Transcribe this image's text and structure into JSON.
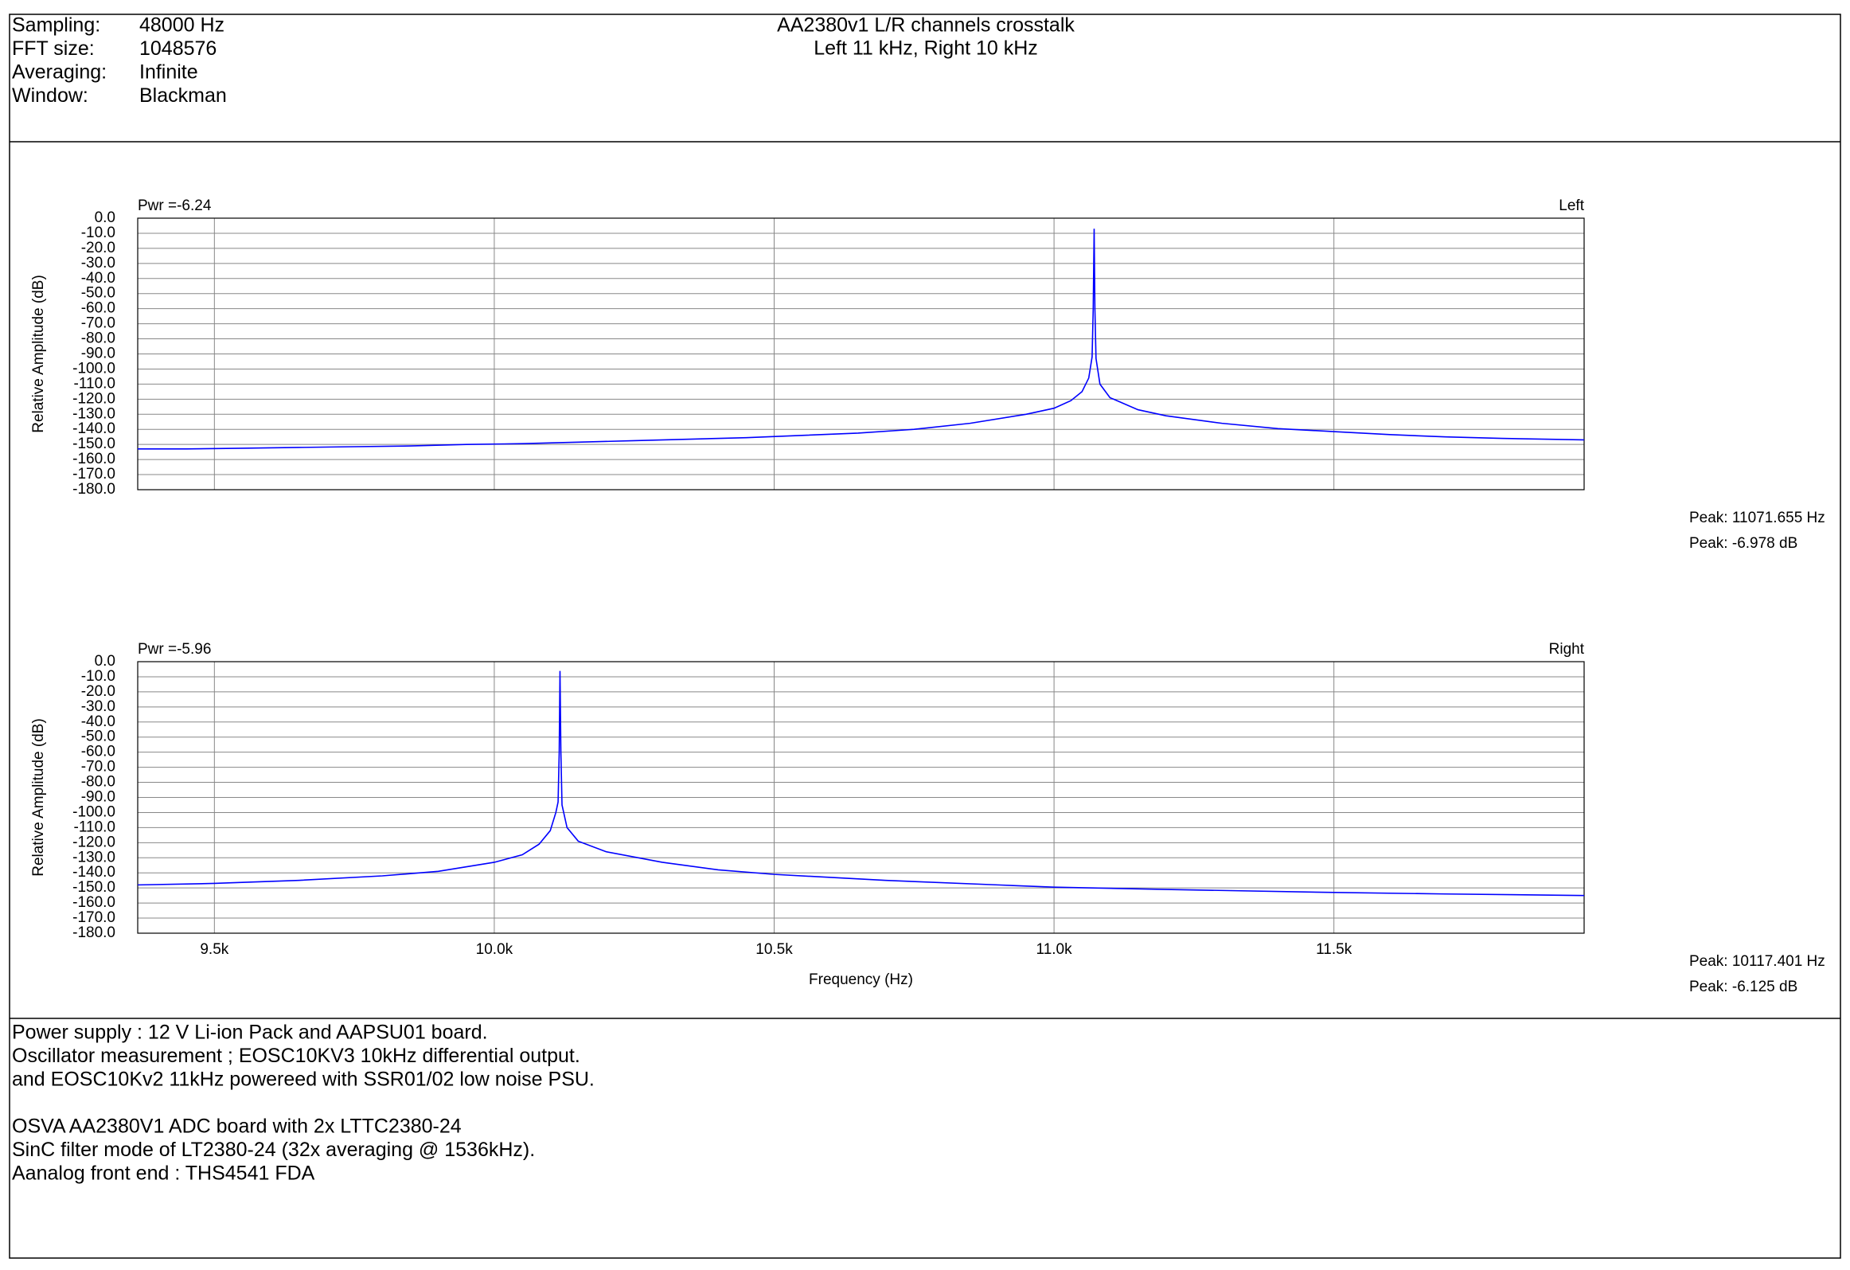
{
  "header": {
    "fields": [
      {
        "label": "Sampling:",
        "value": "48000 Hz"
      },
      {
        "label": "FFT size:",
        "value": "1048576"
      },
      {
        "label": "Averaging:",
        "value": "Infinite"
      },
      {
        "label": "Window:",
        "value": "Blackman"
      }
    ],
    "title": "AA2380v1 L/R channels crosstalk",
    "subtitle": "Left 11 kHz, Right 10 kHz"
  },
  "chart_data": [
    {
      "type": "line",
      "power_label": "Pwr =-6.24",
      "ylabel": "Relative Amplitude (dB)",
      "peak_labels": [
        "Peak: 11071.655 Hz",
        "Peak: -6.978 dB"
      ],
      "x": [
        9363,
        9450,
        9550,
        9650,
        9750,
        9850,
        9950,
        10050,
        10150,
        10250,
        10350,
        10450,
        10550,
        10650,
        10750,
        10850,
        10950,
        11000,
        11030,
        11050,
        11062,
        11068,
        11070,
        11071.655,
        11073,
        11075,
        11082,
        11100,
        11150,
        11200,
        11300,
        11400,
        11500,
        11600,
        11700,
        11800,
        11947
      ],
      "series": [
        {
          "name": "Left",
          "color": "#0000ff",
          "values": [
            -153,
            -153,
            -152.5,
            -152,
            -151.5,
            -151,
            -150,
            -149.5,
            -148.5,
            -147.5,
            -146.5,
            -145.5,
            -144,
            -142.5,
            -140,
            -136,
            -130,
            -126,
            -121,
            -115,
            -106,
            -92,
            -60,
            -6.978,
            -60,
            -93,
            -110,
            -119,
            -127,
            -131,
            -136,
            -139.5,
            -141.5,
            -143.5,
            -145,
            -146,
            -147
          ]
        }
      ],
      "xlim": [
        9363,
        11947
      ],
      "xticks": [
        9500,
        10000,
        10500,
        11000,
        11500
      ],
      "show_xtick_labels": false,
      "ylim": [
        -180,
        0
      ],
      "yticks": [
        {
          "value": 0,
          "label": "0.0"
        },
        {
          "value": -10,
          "label": "-10.0"
        },
        {
          "value": -20,
          "label": "-20.0"
        },
        {
          "value": -30,
          "label": "-30.0"
        },
        {
          "value": -40,
          "label": "-40.0"
        },
        {
          "value": -50,
          "label": "-50.0"
        },
        {
          "value": -60,
          "label": "-60.0"
        },
        {
          "value": -70,
          "label": "-70.0"
        },
        {
          "value": -80,
          "label": "-80.0"
        },
        {
          "value": -90,
          "label": "-90.0"
        },
        {
          "value": -100,
          "label": "-100.0"
        },
        {
          "value": -110,
          "label": "-110.0"
        },
        {
          "value": -120,
          "label": "-120.0"
        },
        {
          "value": -130,
          "label": "-130.0"
        },
        {
          "value": -140,
          "label": "-140.0"
        },
        {
          "value": -150,
          "label": "-150.0"
        },
        {
          "value": -160,
          "label": "-160.0"
        },
        {
          "value": -170,
          "label": "-170.0"
        },
        {
          "value": -180,
          "label": "-180.0"
        }
      ],
      "grid": true
    },
    {
      "type": "line",
      "power_label": "Pwr =-5.96",
      "ylabel": "Relative Amplitude (dB)",
      "xlabel": "Frequency (Hz)",
      "peak_labels": [
        "Peak: 10117.401 Hz",
        "Peak: -6.125 dB"
      ],
      "x": [
        9363,
        9500,
        9650,
        9800,
        9900,
        10000,
        10050,
        10080,
        10100,
        10110,
        10114,
        10116,
        10117.401,
        10119,
        10121,
        10130,
        10150,
        10200,
        10300,
        10400,
        10500,
        10700,
        10900,
        11000,
        11200,
        11500,
        11700,
        11947
      ],
      "series": [
        {
          "name": "Right",
          "color": "#0000ff",
          "values": [
            -148,
            -147,
            -145,
            -142,
            -139,
            -133,
            -128,
            -121,
            -112,
            -100,
            -93,
            -60,
            -6.125,
            -60,
            -95,
            -110,
            -119,
            -126,
            -133,
            -138,
            -141,
            -145,
            -148,
            -149.5,
            -151,
            -153,
            -154,
            -155
          ]
        }
      ],
      "xlim": [
        9363,
        11947
      ],
      "xticks": [
        {
          "value": 9500,
          "label": "9.5k"
        },
        {
          "value": 10000,
          "label": "10.0k"
        },
        {
          "value": 10500,
          "label": "10.5k"
        },
        {
          "value": 11000,
          "label": "11.0k"
        },
        {
          "value": 11500,
          "label": "11.5k"
        }
      ],
      "show_xtick_labels": true,
      "ylim": [
        -180,
        0
      ],
      "yticks": [
        {
          "value": 0,
          "label": "0.0"
        },
        {
          "value": -10,
          "label": "-10.0"
        },
        {
          "value": -20,
          "label": "-20.0"
        },
        {
          "value": -30,
          "label": "-30.0"
        },
        {
          "value": -40,
          "label": "-40.0"
        },
        {
          "value": -50,
          "label": "-50.0"
        },
        {
          "value": -60,
          "label": "-60.0"
        },
        {
          "value": -70,
          "label": "-70.0"
        },
        {
          "value": -80,
          "label": "-80.0"
        },
        {
          "value": -90,
          "label": "-90.0"
        },
        {
          "value": -100,
          "label": "-100.0"
        },
        {
          "value": -110,
          "label": "-110.0"
        },
        {
          "value": -120,
          "label": "-120.0"
        },
        {
          "value": -130,
          "label": "-130.0"
        },
        {
          "value": -140,
          "label": "-140.0"
        },
        {
          "value": -150,
          "label": "-150.0"
        },
        {
          "value": -160,
          "label": "-160.0"
        },
        {
          "value": -170,
          "label": "-170.0"
        },
        {
          "value": -180,
          "label": "-180.0"
        }
      ],
      "grid": true
    }
  ],
  "notes": [
    [
      "Power supply : 12 V Li-ion Pack and AAPSU01 board.",
      "Oscillator measurement ; EOSC10KV3 10kHz differential output.",
      "and EOSC10Kv2 11kHz powereed with SSR01/02 low noise PSU."
    ],
    [
      "OSVA AA2380V1 ADC board with 2x LTTC2380-24",
      "SinC filter mode of LT2380-24 (32x averaging @ 1536kHz).",
      "Aanalog front end  : THS4541 FDA"
    ]
  ]
}
